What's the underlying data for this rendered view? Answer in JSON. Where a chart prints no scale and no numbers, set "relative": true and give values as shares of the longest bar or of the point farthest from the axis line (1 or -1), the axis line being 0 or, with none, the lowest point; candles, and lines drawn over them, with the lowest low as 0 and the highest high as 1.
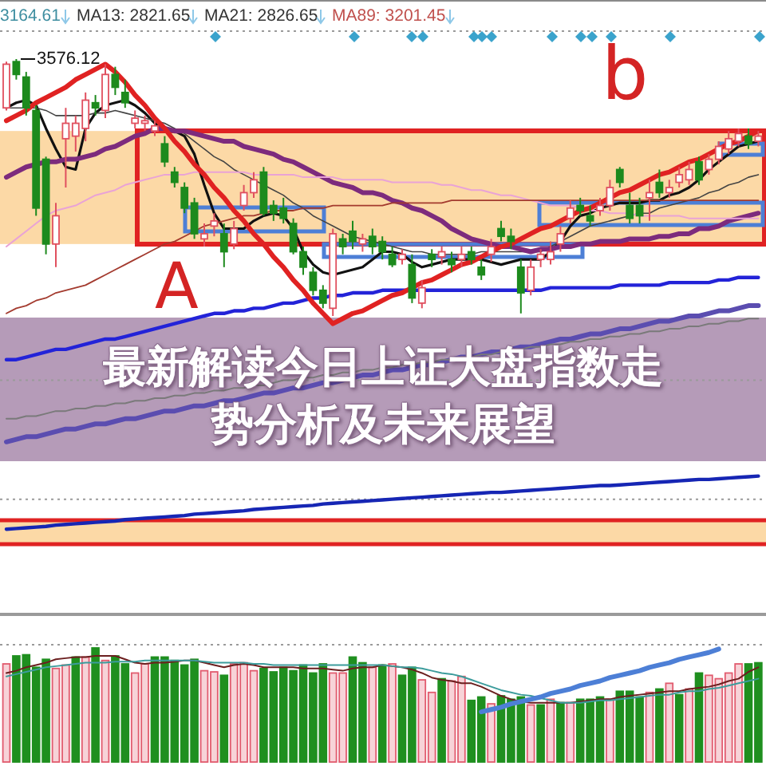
{
  "chart_data": [
    {
      "type": "candlestick",
      "relative": true,
      "title": "最新解读今日上证大盘指数走势分析及未来展望",
      "categories": [
        null,
        null,
        null,
        null,
        null,
        null,
        null,
        null,
        null,
        null,
        null,
        null,
        null,
        null,
        null,
        null,
        null,
        null,
        null,
        null,
        null,
        null,
        null,
        null,
        null,
        null,
        null,
        null,
        null,
        null,
        null,
        null,
        null,
        null,
        null,
        null,
        null,
        null,
        null,
        null,
        null,
        null,
        null,
        null,
        null,
        null,
        null,
        null,
        null,
        null,
        null,
        null,
        null,
        null,
        null,
        null,
        null,
        null,
        null,
        null,
        null,
        null,
        null,
        null,
        null,
        null,
        null,
        null,
        null,
        null,
        null,
        null,
        null,
        null,
        null,
        null,
        null
      ],
      "ohlc": [
        [
          0.81,
          0.99,
          0.8,
          0.98
        ],
        [
          0.99,
          1,
          0.92,
          0.94
        ],
        [
          0.93,
          0.95,
          0.78,
          0.81
        ],
        [
          0.8,
          0.82,
          0.39,
          0.42
        ],
        [
          0.61,
          0.62,
          0.24,
          0.28
        ],
        [
          0.28,
          0.44,
          0.19,
          0.39
        ],
        [
          0.69,
          0.81,
          0.5,
          0.75
        ],
        [
          0.7,
          0.78,
          0.64,
          0.75
        ],
        [
          0.73,
          0.87,
          0.68,
          0.84
        ],
        [
          0.83,
          0.86,
          0.78,
          0.81
        ],
        [
          0.8,
          0.98,
          0.77,
          0.94
        ],
        [
          0.94,
          0.97,
          0.86,
          0.89
        ],
        [
          0.87,
          0.92,
          0.81,
          0.83
        ],
        [
          0.75,
          0.8,
          0.73,
          0.77
        ],
        [
          0.75,
          0.78,
          0.72,
          0.76
        ],
        [
          0.72,
          0.76,
          0.7,
          0.74
        ],
        [
          0.67,
          0.7,
          0.58,
          0.6
        ],
        [
          0.56,
          0.58,
          0.5,
          0.52
        ],
        [
          0.5,
          0.52,
          0.4,
          0.42
        ],
        [
          0.44,
          0.46,
          0.3,
          0.32
        ],
        [
          0.3,
          0.36,
          0.27,
          0.32
        ],
        [
          0.35,
          0.4,
          0.31,
          0.37
        ],
        [
          0.32,
          0.36,
          0.19,
          0.25
        ],
        [
          0.28,
          0.37,
          0.26,
          0.34
        ],
        [
          0.43,
          0.51,
          0.41,
          0.48
        ],
        [
          0.48,
          0.56,
          0.46,
          0.53
        ],
        [
          0.56,
          0.58,
          0.39,
          0.4
        ],
        [
          0.43,
          0.45,
          0.37,
          0.4
        ],
        [
          0.42,
          0.46,
          0.36,
          0.38
        ],
        [
          0.36,
          0.38,
          0.24,
          0.25
        ],
        [
          0.25,
          0.27,
          0.16,
          0.19
        ],
        [
          0.17,
          0.19,
          0.08,
          0.1
        ],
        [
          0.1,
          0.12,
          0.03,
          0.05
        ],
        [
          0.03,
          0.34,
          0,
          0.32
        ],
        [
          0.3,
          0.32,
          0.24,
          0.27
        ],
        [
          0.33,
          0.37,
          0.26,
          0.29
        ],
        [
          0.28,
          0.32,
          0.25,
          0.3
        ],
        [
          0.31,
          0.34,
          0.24,
          0.27
        ],
        [
          0.29,
          0.31,
          0.22,
          0.25
        ],
        [
          0.24,
          0.27,
          0.19,
          0.2
        ],
        [
          0.22,
          0.26,
          0.2,
          0.24
        ],
        [
          0.2,
          0.24,
          0.05,
          0.07
        ],
        [
          0.05,
          0.14,
          0.03,
          0.11
        ],
        [
          0.24,
          0.26,
          0.19,
          0.22
        ],
        [
          0.23,
          0.27,
          0.2,
          0.25
        ],
        [
          0.22,
          0.25,
          0.17,
          0.2
        ],
        [
          0.22,
          0.27,
          0.19,
          0.24
        ],
        [
          0.25,
          0.27,
          0.2,
          0.22
        ],
        [
          0.19,
          0.22,
          0.14,
          0.16
        ],
        [
          0.24,
          0.3,
          0.21,
          0.27
        ],
        [
          0.34,
          0.37,
          0.29,
          0.31
        ],
        [
          0.31,
          0.34,
          0.26,
          0.29
        ],
        [
          0.19,
          0.22,
          0.01,
          0.09
        ],
        [
          0.1,
          0.22,
          0.08,
          0.19
        ],
        [
          0.22,
          0.26,
          0.19,
          0.24
        ],
        [
          0.22,
          0.29,
          0.2,
          0.25
        ],
        [
          0.28,
          0.35,
          0.25,
          0.32
        ],
        [
          0.38,
          0.45,
          0.36,
          0.42
        ],
        [
          0.43,
          0.46,
          0.39,
          0.41
        ],
        [
          0.39,
          0.43,
          0.35,
          0.37
        ],
        [
          0.41,
          0.46,
          0.39,
          0.43
        ],
        [
          0.43,
          0.53,
          0.41,
          0.5
        ],
        [
          0.57,
          0.58,
          0.5,
          0.52
        ],
        [
          0.43,
          0.48,
          0.36,
          0.38
        ],
        [
          0.43,
          0.46,
          0.36,
          0.39
        ],
        [
          0.46,
          0.53,
          0.37,
          0.48
        ],
        [
          0.52,
          0.57,
          0.46,
          0.48
        ],
        [
          0.48,
          0.53,
          0.46,
          0.5
        ],
        [
          0.52,
          0.58,
          0.5,
          0.55
        ],
        [
          0.53,
          0.6,
          0.51,
          0.57
        ],
        [
          0.6,
          0.62,
          0.51,
          0.53
        ],
        [
          0.57,
          0.63,
          0.55,
          0.61
        ],
        [
          0.61,
          0.68,
          0.59,
          0.66
        ],
        [
          0.65,
          0.72,
          0.63,
          0.69
        ],
        [
          0.68,
          0.73,
          0.66,
          0.71
        ],
        [
          0.7,
          0.73,
          0.65,
          0.67
        ],
        [
          0.68,
          0.72,
          0.66,
          0.7
        ]
      ],
      "series": [
        {
          "type": "line",
          "color": "#111111",
          "values": [
            0.81,
            0.83,
            0.84,
            0.82,
            0.73,
            0.65,
            0.58,
            0.57,
            0.73,
            0.79,
            0.82,
            0.83,
            0.84,
            0.82,
            0.79,
            0.75,
            0.73,
            0.72,
            0.7,
            0.63,
            0.51,
            0.4,
            0.34,
            0.34,
            0.34,
            0.37,
            0.39,
            0.4,
            0.39,
            0.34,
            0.25,
            0.2,
            0.17,
            0.16,
            0.17,
            0.18,
            0.19,
            0.22,
            0.25,
            0.25,
            0.24,
            0.21,
            0.19,
            0.2,
            0.21,
            0.22,
            0.22,
            0.22,
            0.22,
            0.21,
            0.2,
            0.21,
            0.22,
            0.22,
            0.22,
            0.25,
            0.29,
            0.35,
            0.39,
            0.4,
            0.42,
            0.43,
            0.44,
            0.44,
            0.44,
            0.45,
            0.45,
            0.47,
            0.48,
            0.5,
            0.53,
            0.57,
            0.6,
            0.63,
            0.66,
            0.67,
            0.68
          ]
        },
        {
          "type": "line",
          "color": "#444444",
          "values": [
            0.81,
            0.81,
            0.81,
            0.81,
            0.8,
            0.78,
            0.78,
            0.78,
            0.78,
            0.79,
            0.79,
            0.8,
            0.79,
            0.78,
            0.77,
            0.76,
            0.75,
            0.73,
            0.71,
            0.68,
            0.65,
            0.62,
            0.6,
            0.57,
            0.55,
            0.53,
            0.51,
            0.49,
            0.47,
            0.44,
            0.42,
            0.39,
            0.37,
            0.35,
            0.33,
            0.31,
            0.3,
            0.29,
            0.28,
            0.27,
            0.26,
            0.25,
            0.25,
            0.24,
            0.24,
            0.24,
            0.24,
            0.24,
            0.25,
            0.25,
            0.25,
            0.25,
            0.25,
            0.25,
            0.25,
            0.27,
            0.29,
            0.31,
            0.33,
            0.35,
            0.36,
            0.37,
            0.38,
            0.39,
            0.4,
            0.4,
            0.42,
            0.43,
            0.44,
            0.45,
            0.46,
            0.48,
            0.49,
            0.51,
            0.52,
            0.54,
            0.55
          ]
        },
        {
          "type": "line",
          "color": "#7d2b7d",
          "values": [
            0.54,
            0.56,
            0.58,
            0.59,
            0.6,
            0.6,
            0.61,
            0.61,
            0.62,
            0.63,
            0.65,
            0.66,
            0.68,
            0.7,
            0.71,
            0.73,
            0.73,
            0.72,
            0.72,
            0.71,
            0.7,
            0.69,
            0.68,
            0.68,
            0.66,
            0.65,
            0.64,
            0.63,
            0.61,
            0.6,
            0.58,
            0.56,
            0.54,
            0.52,
            0.51,
            0.5,
            0.48,
            0.48,
            0.47,
            0.45,
            0.44,
            0.42,
            0.41,
            0.39,
            0.37,
            0.34,
            0.32,
            0.3,
            0.29,
            0.28,
            0.27,
            0.27,
            0.26,
            0.25,
            0.26,
            0.26,
            0.27,
            0.27,
            0.28,
            0.28,
            0.29,
            0.29,
            0.29,
            0.3,
            0.3,
            0.3,
            0.31,
            0.31,
            0.32,
            0.32,
            0.34,
            0.34,
            0.35,
            0.37,
            0.38,
            0.39,
            0.4
          ]
        },
        {
          "type": "line",
          "color": "#e9a3d6",
          "values": [
            0.27,
            0.3,
            0.33,
            0.36,
            0.39,
            0.41,
            0.42,
            0.43,
            0.45,
            0.47,
            0.48,
            0.49,
            0.51,
            0.52,
            0.53,
            0.54,
            0.55,
            0.55,
            0.55,
            0.56,
            0.56,
            0.56,
            0.56,
            0.56,
            0.56,
            0.55,
            0.55,
            0.55,
            0.55,
            0.55,
            0.54,
            0.54,
            0.54,
            0.54,
            0.53,
            0.53,
            0.53,
            0.53,
            0.53,
            0.52,
            0.52,
            0.52,
            0.52,
            0.52,
            0.51,
            0.51,
            0.5,
            0.49,
            0.49,
            0.48,
            0.47,
            0.47,
            0.46,
            0.45,
            0.44,
            0.43,
            0.43,
            0.43,
            0.42,
            0.41,
            0.41,
            0.4,
            0.4,
            0.4,
            0.39,
            0.39,
            0.39,
            0.39,
            0.39,
            0.38,
            0.38,
            0.38,
            0.38,
            0.38,
            0.38,
            0.38,
            0.38
          ]
        },
        {
          "type": "line",
          "color": "#a33a2e",
          "values": [
            0.01,
            0.03,
            0.04,
            0.06,
            0.07,
            0.09,
            0.1,
            0.11,
            0.12,
            0.14,
            0.16,
            0.18,
            0.2,
            0.22,
            0.24,
            0.26,
            0.28,
            0.29,
            0.31,
            0.33,
            0.35,
            0.36,
            0.37,
            0.38,
            0.39,
            0.39,
            0.4,
            0.41,
            0.41,
            0.41,
            0.42,
            0.42,
            0.42,
            0.43,
            0.43,
            0.43,
            0.43,
            0.43,
            0.43,
            0.44,
            0.44,
            0.44,
            0.44,
            0.44,
            0.44,
            0.45,
            0.45,
            0.45,
            0.45,
            0.45,
            0.45,
            0.45,
            0.45,
            0.45,
            0.45,
            0.45,
            0.45,
            0.45,
            0.45,
            0.45,
            0.45,
            0.45,
            0.45,
            0.45,
            0.45,
            0.45,
            0.45,
            0.45,
            0.45,
            0.45,
            0.45,
            0.45,
            0.45,
            0.45,
            0.45,
            0.45,
            0.45
          ]
        },
        {
          "type": "line",
          "color": "#2323d8",
          "values": [
            -0.17,
            -0.17,
            -0.16,
            -0.15,
            -0.14,
            -0.13,
            -0.13,
            -0.12,
            -0.11,
            -0.1,
            -0.09,
            -0.09,
            -0.08,
            -0.07,
            -0.06,
            -0.05,
            -0.04,
            -0.03,
            -0.02,
            -0.01,
            0.0,
            0.01,
            0.01,
            0.02,
            0.02,
            0.03,
            0.03,
            0.04,
            0.05,
            0.05,
            0.06,
            0.07,
            0.07,
            0.08,
            0.08,
            0.09,
            0.09,
            0.09,
            0.1,
            0.1,
            0.1,
            0.1,
            0.1,
            0.1,
            0.1,
            0.1,
            0.1,
            0.1,
            0.1,
            0.1,
            0.1,
            0.1,
            0.1,
            0.1,
            0.1,
            0.11,
            0.11,
            0.11,
            0.11,
            0.11,
            0.11,
            0.11,
            0.12,
            0.12,
            0.12,
            0.12,
            0.12,
            0.13,
            0.13,
            0.13,
            0.13,
            0.13,
            0.14,
            0.14,
            0.15,
            0.15,
            0.15
          ]
        },
        {
          "type": "line",
          "color": "#5b4db0",
          "values": [
            -0.49,
            -0.48,
            -0.47,
            -0.47,
            -0.46,
            -0.45,
            -0.44,
            -0.44,
            -0.43,
            -0.42,
            -0.42,
            -0.41,
            -0.4,
            -0.4,
            -0.39,
            -0.38,
            -0.37,
            -0.37,
            -0.36,
            -0.35,
            -0.35,
            -0.34,
            -0.33,
            -0.33,
            -0.32,
            -0.31,
            -0.3,
            -0.3,
            -0.29,
            -0.28,
            -0.28,
            -0.27,
            -0.26,
            -0.26,
            -0.25,
            -0.24,
            -0.23,
            -0.23,
            -0.22,
            -0.21,
            -0.21,
            -0.2,
            -0.19,
            -0.19,
            -0.18,
            -0.17,
            -0.16,
            -0.16,
            -0.15,
            -0.14,
            -0.14,
            -0.13,
            -0.12,
            -0.12,
            -0.11,
            -0.1,
            -0.09,
            -0.09,
            -0.08,
            -0.07,
            -0.07,
            -0.06,
            -0.05,
            -0.05,
            -0.04,
            -0.03,
            -0.02,
            -0.02,
            -0.01,
            0.0,
            0.0,
            0.01,
            0.02,
            0.02,
            0.03,
            0.04,
            0.04
          ]
        },
        {
          "type": "line",
          "color": "#7a7a7a",
          "values": [
            -0.4,
            -0.4,
            -0.39,
            -0.39,
            -0.38,
            -0.37,
            -0.37,
            -0.36,
            -0.36,
            -0.35,
            -0.35,
            -0.34,
            -0.34,
            -0.33,
            -0.33,
            -0.32,
            -0.32,
            -0.31,
            -0.31,
            -0.3,
            -0.3,
            -0.29,
            -0.29,
            -0.28,
            -0.28,
            -0.27,
            -0.27,
            -0.26,
            -0.25,
            -0.25,
            -0.24,
            -0.24,
            -0.23,
            -0.23,
            -0.22,
            -0.22,
            -0.21,
            -0.21,
            -0.2,
            -0.2,
            -0.19,
            -0.19,
            -0.18,
            -0.18,
            -0.17,
            -0.17,
            -0.16,
            -0.16,
            -0.15,
            -0.15,
            -0.14,
            -0.13,
            -0.13,
            -0.12,
            -0.12,
            -0.11,
            -0.11,
            -0.1,
            -0.1,
            -0.09,
            -0.09,
            -0.08,
            -0.08,
            -0.07,
            -0.07,
            -0.06,
            -0.06,
            -0.05,
            -0.05,
            -0.04,
            -0.04,
            -0.03,
            -0.03,
            -0.02,
            -0.02,
            -0.01,
            -0.01
          ]
        },
        {
          "type": "line",
          "color": "#e02222",
          "values": [
            0.76,
            0.78,
            0.8,
            0.83,
            0.85,
            0.87,
            0.89,
            0.92,
            0.94,
            0.96,
            0.98,
            0.95,
            0.91,
            0.86,
            0.82,
            0.77,
            0.73,
            0.68,
            0.64,
            0.59,
            0.55,
            0.5,
            0.46,
            0.41,
            0.37,
            0.32,
            0.28,
            0.23,
            0.19,
            0.14,
            0.1,
            0.05,
            0.01,
            -0.03,
            -0.01,
            0.01,
            0.02,
            0.04,
            0.06,
            0.08,
            0.09,
            0.11,
            0.13,
            0.14,
            0.16,
            0.18,
            0.2,
            0.21,
            0.23,
            0.25,
            0.27,
            0.28,
            0.3,
            0.32,
            0.34,
            0.35,
            0.37,
            0.39,
            0.41,
            0.42,
            0.44,
            0.46,
            0.48,
            0.49,
            0.51,
            0.53,
            0.55,
            0.56,
            0.58,
            0.6,
            0.61,
            0.63,
            0.65,
            0.67,
            0.68,
            0.7,
            0.72
          ]
        }
      ],
      "bands": [
        {
          "axis": "y",
          "from": 0.28,
          "to": 0.72,
          "color": "#fcd9a6"
        }
      ],
      "ref_lines": [
        {
          "axis": "y",
          "value": -0.25,
          "color": "#9a9a9a",
          "line_style": "dotted"
        }
      ],
      "annotations": [
        "3164.61",
        "MA13: 2821.65",
        "MA21: 2826.65",
        "MA89: 3201.45",
        "3576.12",
        "b",
        "A"
      ]
    },
    {
      "type": "line",
      "relative": true,
      "categories": [
        null,
        null,
        null,
        null,
        null,
        null,
        null,
        null,
        null,
        null,
        null,
        null,
        null,
        null,
        null,
        null,
        null,
        null,
        null,
        null,
        null,
        null,
        null,
        null,
        null,
        null,
        null,
        null,
        null,
        null,
        null,
        null,
        null,
        null,
        null,
        null,
        null,
        null,
        null,
        null,
        null,
        null,
        null,
        null,
        null,
        null,
        null,
        null,
        null,
        null,
        null,
        null,
        null,
        null,
        null,
        null,
        null,
        null,
        null,
        null,
        null,
        null,
        null,
        null,
        null,
        null,
        null,
        null,
        null,
        null,
        null,
        null,
        null,
        null,
        null,
        null,
        null
      ],
      "color": "#1626b4",
      "values": [
        0.22,
        0.23,
        0.24,
        0.25,
        0.26,
        0.28,
        0.29,
        0.3,
        0.31,
        0.32,
        0.33,
        0.34,
        0.36,
        0.37,
        0.38,
        0.39,
        0.4,
        0.41,
        0.42,
        0.44,
        0.45,
        0.46,
        0.47,
        0.48,
        0.49,
        0.51,
        0.52,
        0.53,
        0.54,
        0.55,
        0.56,
        0.57,
        0.59,
        0.6,
        0.61,
        0.62,
        0.63,
        0.64,
        0.65,
        0.66,
        0.67,
        0.68,
        0.69,
        0.7,
        0.71,
        0.72,
        0.73,
        0.74,
        0.75,
        0.76,
        0.76,
        0.77,
        0.78,
        0.79,
        0.8,
        0.81,
        0.82,
        0.83,
        0.84,
        0.85,
        0.86,
        0.86,
        0.87,
        0.88,
        0.89,
        0.9,
        0.91,
        0.92,
        0.93,
        0.94,
        0.95,
        0.95,
        0.96,
        0.97,
        0.98,
        0.99,
        1
      ],
      "bands": [
        {
          "axis": "y",
          "from": 0,
          "to": 0.35,
          "color": "#fcd9a6"
        }
      ],
      "ref_lines": [
        {
          "axis": "y",
          "value": 0,
          "color": "#e02222"
        },
        {
          "axis": "y",
          "value": 0.35,
          "color": "#e02222"
        },
        {
          "axis": "y",
          "value": 0.66,
          "color": "#9a9a9a",
          "line_style": "dotted"
        }
      ]
    },
    {
      "type": "bar",
      "relative": true,
      "categories": [
        null,
        null,
        null,
        null,
        null,
        null,
        null,
        null,
        null,
        null,
        null,
        null,
        null,
        null,
        null,
        null,
        null,
        null,
        null,
        null,
        null,
        null,
        null,
        null,
        null,
        null,
        null,
        null,
        null,
        null,
        null,
        null,
        null,
        null,
        null,
        null,
        null,
        null,
        null,
        null,
        null,
        null,
        null,
        null,
        null,
        null,
        null,
        null,
        null,
        null,
        null,
        null,
        null,
        null,
        null,
        null,
        null,
        null,
        null,
        null,
        null,
        null,
        null,
        null,
        null,
        null,
        null,
        null,
        null,
        null,
        null,
        null,
        null,
        null,
        null,
        null,
        null
      ],
      "series": [
        {
          "type": "bar",
          "values": [
            0.86,
            0.93,
            0.94,
            0.83,
            0.9,
            0.82,
            0.85,
            0.92,
            0.92,
            1.0,
            0.89,
            0.93,
            0.86,
            0.78,
            0.86,
            0.92,
            0.92,
            0.89,
            0.85,
            0.9,
            0.8,
            0.79,
            0.76,
            0.86,
            0.87,
            0.8,
            0.82,
            0.79,
            0.83,
            0.8,
            0.85,
            0.78,
            0.86,
            0.78,
            0.78,
            0.92,
            0.87,
            0.83,
            0.85,
            0.86,
            0.76,
            0.83,
            0.72,
            0.61,
            0.73,
            0.71,
            0.75,
            0.54,
            0.57,
            0.51,
            0.58,
            0.55,
            0.57,
            0.5,
            0.5,
            0.55,
            0.52,
            0.52,
            0.55,
            0.55,
            0.57,
            0.55,
            0.62,
            0.62,
            0.57,
            0.61,
            0.64,
            0.69,
            0.59,
            0.64,
            0.78,
            0.76,
            0.73,
            0.78,
            0.86,
            0.86,
            0.87
          ],
          "colors": [
            "#f7d3d8",
            "#1f8f1f",
            "#1f8f1f",
            "#1f8f1f",
            "#1f8f1f",
            "#f7d3d8",
            "#f7d3d8",
            "#1f8f1f",
            "#f7d3d8",
            "#1f8f1f",
            "#f7d3d8",
            "#1f8f1f",
            "#1f8f1f",
            "#f7d3d8",
            "#f7d3d8",
            "#1f8f1f",
            "#1f8f1f",
            "#1f8f1f",
            "#1f8f1f",
            "#1f8f1f",
            "#f7d3d8",
            "#f7d3d8",
            "#1f8f1f",
            "#f7d3d8",
            "#f7d3d8",
            "#f7d3d8",
            "#1f8f1f",
            "#1f8f1f",
            "#1f8f1f",
            "#1f8f1f",
            "#1f8f1f",
            "#1f8f1f",
            "#1f8f1f",
            "#f7d3d8",
            "#f7d3d8",
            "#1f8f1f",
            "#1f8f1f",
            "#f7d3d8",
            "#1f8f1f",
            "#f7d3d8",
            "#1f8f1f",
            "#1f8f1f",
            "#f7d3d8",
            "#f7d3d8",
            "#1f8f1f",
            "#f7d3d8",
            "#f7d3d8",
            "#1f8f1f",
            "#1f8f1f",
            "#f7d3d8",
            "#1f8f1f",
            "#1f8f1f",
            "#1f8f1f",
            "#f7d3d8",
            "#1f8f1f",
            "#f7d3d8",
            "#1f8f1f",
            "#f7d3d8",
            "#1f8f1f",
            "#1f8f1f",
            "#1f8f1f",
            "#f7d3d8",
            "#1f8f1f",
            "#1f8f1f",
            "#1f8f1f",
            "#f7d3d8",
            "#1f8f1f",
            "#f7d3d8",
            "#1f8f1f",
            "#f7d3d8",
            "#1f8f1f",
            "#f7d3d8",
            "#f7d3d8",
            "#f7d3d8",
            "#f7d3d8",
            "#1f8f1f",
            "#1f8f1f"
          ]
        },
        {
          "type": "line",
          "color": "#6b1f1f",
          "values": [
            0.78,
            0.8,
            0.83,
            0.85,
            0.87,
            0.9,
            0.91,
            0.92,
            0.92,
            0.93,
            0.93,
            0.93,
            0.9,
            0.87,
            0.86,
            0.87,
            0.87,
            0.88,
            0.89,
            0.89,
            0.87,
            0.85,
            0.83,
            0.85,
            0.86,
            0.85,
            0.83,
            0.83,
            0.83,
            0.83,
            0.82,
            0.82,
            0.82,
            0.81,
            0.8,
            0.82,
            0.83,
            0.83,
            0.85,
            0.84,
            0.83,
            0.81,
            0.78,
            0.74,
            0.72,
            0.71,
            0.69,
            0.69,
            0.66,
            0.62,
            0.58,
            0.55,
            0.53,
            0.52,
            0.52,
            0.52,
            0.52,
            0.52,
            0.53,
            0.54,
            0.55,
            0.55,
            0.57,
            0.58,
            0.59,
            0.6,
            0.61,
            0.62,
            0.62,
            0.64,
            0.65,
            0.66,
            0.68,
            0.71,
            0.73,
            0.79,
            0.83
          ]
        },
        {
          "type": "line",
          "color": "#3c9c9c",
          "values": [
            0.75,
            0.77,
            0.79,
            0.81,
            0.83,
            0.84,
            0.85,
            0.86,
            0.87,
            0.87,
            0.87,
            0.88,
            0.88,
            0.88,
            0.89,
            0.89,
            0.89,
            0.89,
            0.89,
            0.89,
            0.88,
            0.87,
            0.87,
            0.87,
            0.87,
            0.86,
            0.86,
            0.85,
            0.85,
            0.85,
            0.85,
            0.85,
            0.85,
            0.85,
            0.85,
            0.85,
            0.85,
            0.85,
            0.85,
            0.84,
            0.83,
            0.83,
            0.82,
            0.8,
            0.78,
            0.77,
            0.75,
            0.72,
            0.69,
            0.66,
            0.63,
            0.61,
            0.59,
            0.58,
            0.56,
            0.54,
            0.52,
            0.52,
            0.52,
            0.53,
            0.54,
            0.54,
            0.55,
            0.56,
            0.57,
            0.58,
            0.59,
            0.59,
            0.61,
            0.62,
            0.62,
            0.64,
            0.65,
            0.67,
            0.69,
            0.71,
            0.73
          ]
        },
        {
          "type": "line",
          "color": "#4d7fd6",
          "values": [
            null,
            null,
            null,
            null,
            null,
            null,
            null,
            null,
            null,
            null,
            null,
            null,
            null,
            null,
            null,
            null,
            null,
            null,
            null,
            null,
            null,
            null,
            null,
            null,
            null,
            null,
            null,
            null,
            null,
            null,
            null,
            null,
            null,
            null,
            null,
            null,
            null,
            null,
            null,
            null,
            null,
            null,
            null,
            null,
            null,
            null,
            null,
            null,
            0.44,
            0.46,
            0.48,
            0.51,
            0.53,
            0.55,
            0.57,
            0.6,
            0.62,
            0.64,
            0.67,
            0.69,
            0.71,
            0.74,
            0.76,
            0.78,
            0.8,
            0.83,
            0.85,
            0.87,
            0.9,
            0.92,
            0.94,
            0.96,
            0.99,
            null,
            null,
            null,
            null
          ]
        }
      ]
    }
  ]
}
